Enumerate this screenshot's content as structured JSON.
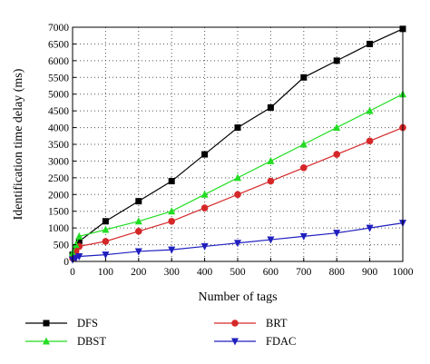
{
  "chart_data": {
    "type": "line",
    "xlabel": "Number of tags",
    "ylabel": "Identification time delay (ms)",
    "xlim": [
      0,
      1000
    ],
    "ylim": [
      0,
      7000
    ],
    "xticks": [
      0,
      100,
      200,
      300,
      400,
      500,
      600,
      700,
      800,
      900,
      1000
    ],
    "yticks": [
      0,
      500,
      1000,
      1500,
      2000,
      2500,
      3000,
      3500,
      4000,
      4500,
      5000,
      5500,
      6000,
      6500,
      7000
    ],
    "grid": "dotted",
    "legend_position": "bottom",
    "series": [
      {
        "name": "DFS",
        "color": "#000000",
        "marker": "square",
        "x": [
          0,
          10,
          20,
          100,
          200,
          300,
          400,
          500,
          600,
          700,
          800,
          900,
          1000
        ],
        "y": [
          200,
          400,
          600,
          1200,
          1800,
          2400,
          3200,
          4000,
          4600,
          5500,
          6000,
          6500,
          6950
        ]
      },
      {
        "name": "BRT",
        "color": "#d62728",
        "marker": "circle",
        "x": [
          0,
          10,
          20,
          100,
          200,
          300,
          400,
          500,
          600,
          700,
          800,
          900,
          1000
        ],
        "y": [
          100,
          300,
          450,
          600,
          900,
          1200,
          1600,
          2000,
          2400,
          2800,
          3200,
          3600,
          4000
        ]
      },
      {
        "name": "DBST",
        "color": "#22dd22",
        "marker": "triangle-up",
        "x": [
          0,
          10,
          20,
          100,
          200,
          300,
          400,
          500,
          600,
          700,
          800,
          900,
          1000
        ],
        "y": [
          250,
          500,
          750,
          950,
          1200,
          1500,
          2000,
          2500,
          3000,
          3500,
          4000,
          4500,
          5000
        ]
      },
      {
        "name": "FDAC",
        "color": "#1f1fbf",
        "marker": "triangle-down",
        "x": [
          0,
          10,
          20,
          100,
          200,
          300,
          400,
          500,
          600,
          700,
          800,
          900,
          1000
        ],
        "y": [
          50,
          100,
          150,
          200,
          300,
          350,
          450,
          550,
          650,
          750,
          850,
          1000,
          1150
        ]
      }
    ]
  }
}
